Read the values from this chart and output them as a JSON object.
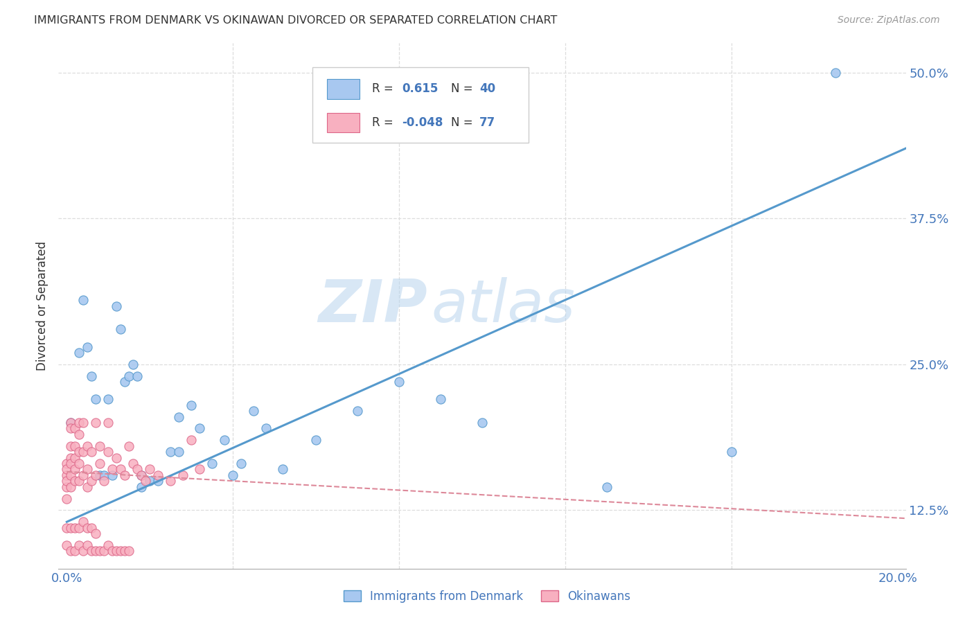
{
  "title": "IMMIGRANTS FROM DENMARK VS OKINAWAN DIVORCED OR SEPARATED CORRELATION CHART",
  "source": "Source: ZipAtlas.com",
  "ylabel": "Divorced or Separated",
  "legend_blue_R": "0.615",
  "legend_blue_N": "40",
  "legend_pink_R": "-0.048",
  "legend_pink_N": "77",
  "legend_label_blue": "Immigrants from Denmark",
  "legend_label_pink": "Okinawans",
  "watermark_zip": "ZIP",
  "watermark_atlas": "atlas",
  "blue_color": "#a8c8f0",
  "blue_edge": "#5599cc",
  "pink_color": "#f8b0c0",
  "pink_edge": "#dd6688",
  "blue_line_color": "#5599cc",
  "pink_line_color": "#dd8899",
  "text_color": "#4477bb",
  "title_color": "#333333",
  "source_color": "#999999",
  "grid_color": "#dddddd",
  "background_color": "#ffffff",
  "blue_scatter_x": [
    0.001,
    0.003,
    0.004,
    0.005,
    0.006,
    0.007,
    0.008,
    0.009,
    0.01,
    0.011,
    0.012,
    0.013,
    0.014,
    0.015,
    0.016,
    0.017,
    0.018,
    0.02,
    0.022,
    0.025,
    0.027,
    0.03,
    0.032,
    0.035,
    0.038,
    0.04,
    0.042,
    0.045,
    0.048,
    0.052,
    0.06,
    0.07,
    0.08,
    0.09,
    0.1,
    0.13,
    0.16,
    0.185,
    0.027,
    0.018
  ],
  "blue_scatter_y": [
    0.2,
    0.26,
    0.305,
    0.265,
    0.24,
    0.22,
    0.155,
    0.155,
    0.22,
    0.155,
    0.3,
    0.28,
    0.235,
    0.24,
    0.25,
    0.24,
    0.155,
    0.15,
    0.15,
    0.175,
    0.205,
    0.215,
    0.195,
    0.165,
    0.185,
    0.155,
    0.165,
    0.21,
    0.195,
    0.16,
    0.185,
    0.21,
    0.235,
    0.22,
    0.2,
    0.145,
    0.175,
    0.5,
    0.175,
    0.145
  ],
  "pink_scatter_x": [
    0.0,
    0.0,
    0.0,
    0.0,
    0.0,
    0.0,
    0.001,
    0.001,
    0.001,
    0.001,
    0.001,
    0.001,
    0.001,
    0.002,
    0.002,
    0.002,
    0.002,
    0.002,
    0.003,
    0.003,
    0.003,
    0.003,
    0.003,
    0.004,
    0.004,
    0.004,
    0.005,
    0.005,
    0.005,
    0.006,
    0.006,
    0.007,
    0.007,
    0.008,
    0.008,
    0.009,
    0.01,
    0.01,
    0.011,
    0.012,
    0.013,
    0.014,
    0.015,
    0.016,
    0.017,
    0.018,
    0.019,
    0.02,
    0.022,
    0.025,
    0.028,
    0.03,
    0.032,
    0.0,
    0.001,
    0.002,
    0.003,
    0.004,
    0.005,
    0.006,
    0.007,
    0.008,
    0.009,
    0.01,
    0.011,
    0.012,
    0.013,
    0.014,
    0.015,
    0.0,
    0.001,
    0.002,
    0.003,
    0.004,
    0.005,
    0.006,
    0.007
  ],
  "pink_scatter_y": [
    0.145,
    0.155,
    0.135,
    0.165,
    0.16,
    0.15,
    0.2,
    0.195,
    0.18,
    0.17,
    0.165,
    0.155,
    0.145,
    0.195,
    0.18,
    0.17,
    0.16,
    0.15,
    0.2,
    0.19,
    0.175,
    0.165,
    0.15,
    0.2,
    0.175,
    0.155,
    0.18,
    0.16,
    0.145,
    0.175,
    0.15,
    0.155,
    0.2,
    0.18,
    0.165,
    0.15,
    0.2,
    0.175,
    0.16,
    0.17,
    0.16,
    0.155,
    0.18,
    0.165,
    0.16,
    0.155,
    0.15,
    0.16,
    0.155,
    0.15,
    0.155,
    0.185,
    0.16,
    0.095,
    0.09,
    0.09,
    0.095,
    0.09,
    0.095,
    0.09,
    0.09,
    0.09,
    0.09,
    0.095,
    0.09,
    0.09,
    0.09,
    0.09,
    0.09,
    0.11,
    0.11,
    0.11,
    0.11,
    0.115,
    0.11,
    0.11,
    0.105
  ],
  "xlim": [
    -0.002,
    0.202
  ],
  "ylim": [
    0.075,
    0.525
  ],
  "blue_line_x": [
    0.0,
    0.202
  ],
  "blue_line_y": [
    0.115,
    0.435
  ],
  "pink_line_x": [
    0.0,
    0.202
  ],
  "pink_line_y": [
    0.158,
    0.118
  ],
  "ytick_vals": [
    0.125,
    0.25,
    0.375,
    0.5
  ],
  "ytick_labels": [
    "12.5%",
    "25.0%",
    "37.5%",
    "50.0%"
  ]
}
